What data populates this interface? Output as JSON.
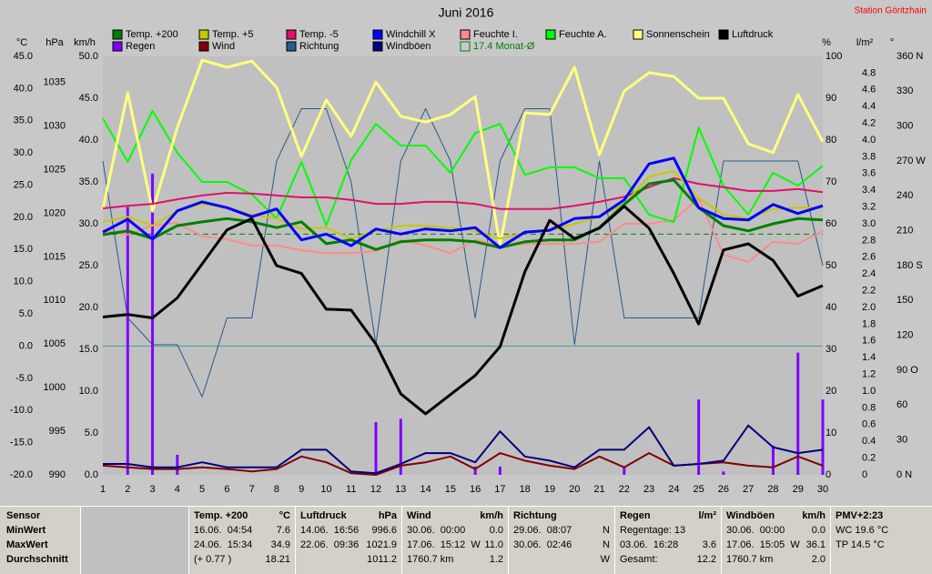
{
  "chart_data": {
    "type": "line",
    "title": "Juni 2016",
    "station": "Station Göritzhain",
    "x": [
      1,
      2,
      3,
      4,
      5,
      6,
      7,
      8,
      9,
      10,
      11,
      12,
      13,
      14,
      15,
      16,
      17,
      18,
      19,
      20,
      21,
      22,
      23,
      24,
      25,
      26,
      27,
      28,
      29,
      30
    ],
    "xlim": [
      1,
      30
    ],
    "xticks": [
      1,
      2,
      3,
      4,
      5,
      6,
      7,
      8,
      9,
      10,
      11,
      12,
      13,
      14,
      15,
      16,
      17,
      18,
      19,
      20,
      21,
      22,
      23,
      24,
      25,
      26,
      27,
      28,
      29,
      30
    ],
    "axes": [
      {
        "label": "°C",
        "lim": [
          -20,
          45
        ],
        "ticks": [
          {
            "value": -20,
            "label": "-20.0"
          },
          {
            "value": -15,
            "label": "-15.0"
          },
          {
            "value": -10,
            "label": "-10.0"
          },
          {
            "value": -5,
            "label": "-5.0"
          },
          {
            "value": 0,
            "label": "0.0"
          },
          {
            "value": 5,
            "label": "5.0"
          },
          {
            "value": 10,
            "label": "10.0"
          },
          {
            "value": 15,
            "label": "15.0"
          },
          {
            "value": 20,
            "label": "20.0"
          },
          {
            "value": 25,
            "label": "25.0"
          },
          {
            "value": 30,
            "label": "30.0"
          },
          {
            "value": 35,
            "label": "35.0"
          },
          {
            "value": 40,
            "label": "40.0"
          },
          {
            "value": 45,
            "label": "45.0"
          }
        ]
      },
      {
        "label": "hPa",
        "lim": [
          990,
          1038
        ],
        "ticks": [
          990,
          995,
          1000,
          1005,
          1010,
          1015,
          1020,
          1025,
          1030,
          1035
        ]
      },
      {
        "label": "km/h",
        "lim": [
          0,
          50
        ],
        "ticks": [
          {
            "value": 0,
            "label": "0.0"
          },
          {
            "value": 5,
            "label": "5.0"
          },
          {
            "value": 10,
            "label": "10.0"
          },
          {
            "value": 15,
            "label": "15.0"
          },
          {
            "value": 20,
            "label": "20.0"
          },
          {
            "value": 25,
            "label": "25.0"
          },
          {
            "value": 30,
            "label": "30.0"
          },
          {
            "value": 35,
            "label": "35.0"
          },
          {
            "value": 40,
            "label": "40.0"
          },
          {
            "value": 45,
            "label": "45.0"
          },
          {
            "value": 50,
            "label": "50.0"
          }
        ]
      },
      {
        "label": "%",
        "lim": [
          0,
          100
        ],
        "ticks": [
          0,
          10,
          20,
          30,
          40,
          50,
          60,
          70,
          80,
          90,
          100
        ]
      },
      {
        "label": "l/m²",
        "lim": [
          0,
          5
        ],
        "ticks": [
          0,
          0.2,
          0.4,
          0.6,
          0.8,
          {
            "value": 1,
            "label": "1.0"
          },
          1.2,
          1.4,
          1.6,
          1.8,
          {
            "value": 2,
            "label": "2.0"
          },
          2.2,
          2.4,
          2.6,
          2.8,
          {
            "value": 3,
            "label": "3.0"
          },
          3.2,
          3.4,
          3.6,
          3.8,
          {
            "value": 4,
            "label": "4.0"
          },
          4.2,
          4.4,
          4.6,
          4.8
        ]
      },
      {
        "label": "°",
        "lim": [
          0,
          360
        ],
        "ticks": [
          {
            "value": 0,
            "label": "0 N"
          },
          30,
          60,
          {
            "value": 90,
            "label": "90 O"
          },
          120,
          150,
          {
            "value": 180,
            "label": "180 S"
          },
          210,
          240,
          {
            "value": 270,
            "label": "270 W"
          },
          300,
          330,
          {
            "value": 360,
            "label": "360 N"
          }
        ]
      }
    ],
    "series": [
      {
        "name": "Temp. +200",
        "type": "line",
        "axis": 0,
        "color": "#008000",
        "values": [
          17.3,
          17.9,
          16.7,
          18.7,
          19.3,
          19.8,
          19.3,
          18.4,
          19.3,
          15.9,
          16.5,
          15.0,
          16.2,
          16.5,
          16.5,
          16.2,
          15.3,
          16.2,
          16.5,
          16.5,
          18.4,
          22.0,
          25.2,
          25.8,
          21.5,
          18.7,
          17.9,
          19.0,
          19.8,
          19.6
        ]
      },
      {
        "name": "Temp. +5",
        "type": "line",
        "axis": 0,
        "color": "#c8c800",
        "values": [
          19.3,
          20.1,
          18.7,
          21.0,
          22.1,
          21.5,
          20.4,
          19.8,
          18.2,
          18.4,
          16.7,
          17.9,
          18.7,
          18.7,
          18.4,
          17.9,
          16.7,
          17.6,
          17.9,
          19.0,
          20.1,
          22.1,
          26.3,
          27.2,
          23.0,
          20.4,
          19.8,
          21.3,
          21.5,
          21.5
        ]
      },
      {
        "name": "Temp. -5",
        "type": "line",
        "axis": 0,
        "color": "#e0106a",
        "values": [
          21.4,
          21.8,
          22.1,
          22.8,
          23.4,
          23.8,
          23.7,
          23.4,
          23.1,
          23.1,
          22.7,
          22.1,
          22.1,
          22.4,
          22.4,
          22.1,
          21.3,
          21.3,
          21.3,
          21.8,
          22.4,
          23.2,
          24.7,
          26.1,
          25.2,
          24.7,
          24.1,
          24.1,
          24.4,
          23.9
        ]
      },
      {
        "name": "Windchill X",
        "type": "line",
        "axis": 0,
        "color": "#0000ff",
        "values": [
          17.7,
          19.7,
          16.6,
          21.0,
          22.4,
          21.5,
          20.1,
          21.3,
          16.5,
          17.4,
          15.6,
          18.2,
          17.4,
          18.2,
          17.9,
          18.4,
          15.3,
          17.7,
          18.0,
          19.8,
          20.1,
          22.7,
          28.3,
          29.2,
          21.5,
          19.8,
          19.6,
          22.0,
          20.6,
          21.8
        ]
      },
      {
        "name": "Feuchte I.",
        "type": "line",
        "axis": 3,
        "color": "#ff8a8a",
        "values": [
          58.5,
          57.4,
          59.6,
          60.2,
          57.0,
          56.3,
          54.8,
          54.8,
          53.7,
          53.0,
          53.0,
          53.5,
          56.1,
          54.8,
          53.0,
          56.1,
          54.8,
          55.2,
          55.2,
          55.2,
          55.7,
          60.0,
          60.0,
          60.9,
          66.1,
          52.6,
          50.9,
          55.7,
          55.2,
          58.3
        ]
      },
      {
        "name": "Feuchte A.",
        "type": "line",
        "axis": 3,
        "color": "#00ff00",
        "values": [
          85.2,
          74.8,
          87.0,
          77.0,
          70.0,
          70.0,
          67.0,
          61.3,
          74.8,
          59.6,
          75.2,
          83.9,
          78.7,
          78.7,
          72.2,
          81.7,
          83.9,
          71.7,
          73.5,
          73.5,
          70.9,
          70.9,
          62.2,
          60.4,
          83.0,
          69.1,
          62.2,
          72.2,
          69.1,
          73.9
        ]
      },
      {
        "name": "Sonnenschein",
        "type": "line",
        "axis": 3,
        "color": "#ffff80",
        "values": [
          63.5,
          91.3,
          63.0,
          83.0,
          99.1,
          97.4,
          98.9,
          92.6,
          76.1,
          89.6,
          80.9,
          93.9,
          85.7,
          84.3,
          86.1,
          90.4,
          54.8,
          86.5,
          86.1,
          97.4,
          76.5,
          91.7,
          96.1,
          95.2,
          90.0,
          90.0,
          79.1,
          77.0,
          90.9,
          79.6
        ]
      },
      {
        "name": "Luftdruck",
        "type": "line",
        "axis": 1,
        "color": "#000000",
        "values": [
          1008.1,
          1008.4,
          1008.0,
          1010.3,
          1014.2,
          1018.1,
          1019.4,
          1014.0,
          1013.1,
          1009.0,
          1008.9,
          1005.0,
          999.3,
          997.0,
          999.2,
          1001.4,
          1004.7,
          1013.3,
          1019.2,
          1017.1,
          1018.3,
          1020.8,
          1018.3,
          1013.1,
          1007.3,
          1015.8,
          1016.5,
          1014.6,
          1010.5,
          1011.7
        ]
      },
      {
        "name": "Regen",
        "type": "bar",
        "axis": 4,
        "color": "#8000ff",
        "values": [
          0,
          3.2,
          3.6,
          0.24,
          0,
          0,
          0,
          0,
          0,
          0,
          0,
          0.63,
          0.67,
          0,
          0,
          0.1,
          0.1,
          0,
          0,
          0,
          0,
          0.1,
          0,
          0,
          0.9,
          0.04,
          0,
          0.35,
          1.46,
          0.9
        ]
      },
      {
        "name": "Wind",
        "type": "line",
        "axis": 2,
        "color": "#800000",
        "values": [
          1.1,
          0.9,
          0.7,
          0.7,
          0.9,
          0.7,
          0.4,
          0.7,
          2.2,
          1.5,
          0.2,
          0,
          1.1,
          1.5,
          2.2,
          0.7,
          2.6,
          1.7,
          1.1,
          0.7,
          2.2,
          0.9,
          2.6,
          1.1,
          1.3,
          1.5,
          1.1,
          0.9,
          2.2,
          1.1
        ]
      },
      {
        "name": "Richtung",
        "type": "line",
        "axis": 5,
        "color": "#2a5a8c",
        "values": [
          270,
          135,
          112,
          112,
          67,
          135,
          135,
          270,
          315,
          315,
          252,
          112,
          270,
          315,
          270,
          135,
          270,
          315,
          315,
          112,
          270,
          135,
          135,
          135,
          135,
          270,
          270,
          270,
          270,
          180
        ]
      },
      {
        "name": "Windböen",
        "type": "line",
        "axis": 2,
        "color": "#000080",
        "values": [
          1.3,
          1.3,
          0.9,
          0.9,
          1.5,
          0.9,
          0.9,
          0.9,
          3.0,
          3.0,
          0.4,
          0.2,
          1.3,
          2.6,
          2.6,
          1.5,
          5.2,
          2.2,
          1.7,
          0.9,
          3.0,
          3.0,
          5.7,
          1.1,
          1.3,
          1.7,
          5.9,
          3.3,
          2.6,
          3.0
        ]
      }
    ],
    "monthly_mean": {
      "value": 17.4,
      "label": "17.4 Monat-Ø",
      "axis": 0,
      "color": "#008000"
    }
  },
  "stats": {
    "row_labels": [
      "Sensor",
      "MinWert",
      "MaxWert",
      "Durchschnitt"
    ],
    "blocks": [
      {
        "title": "Temp. +200",
        "unit": "°C",
        "rows": [
          {
            "left": "16.06.  04:54",
            "right": "7.6"
          },
          {
            "left": "24.06.  15:34",
            "right": "34.9"
          },
          {
            "left": "(+ 0.77 )",
            "right": "18.21"
          }
        ]
      },
      {
        "title": "Luftdruck",
        "unit": "hPa",
        "rows": [
          {
            "left": "14.06.  16:56",
            "right": "996.6"
          },
          {
            "left": "22.06.  09:36",
            "right": "1021.9"
          },
          {
            "right": "1011.2"
          }
        ]
      },
      {
        "title": "Wind",
        "unit": "km/h",
        "rows": [
          {
            "left": "30.06.  00:00",
            "right": "0.0"
          },
          {
            "left": "17.06.  15:12  W",
            "right": "11.0"
          },
          {
            "left": "1760.7 km",
            "right": "1.2"
          }
        ]
      },
      {
        "title": "Richtung",
        "rows": [
          {
            "left": "29.06.  08:07",
            "right": "N"
          },
          {
            "left": "30.06.  02:46",
            "right": "N"
          },
          {
            "right": "W"
          }
        ]
      },
      {
        "title": "Regen",
        "unit": "l/m²",
        "rows": [
          {
            "left": "Regentage: 13"
          },
          {
            "left": "03.06.  16:28",
            "right": "3.6"
          },
          {
            "left": "Gesamt:",
            "right": "12.2"
          }
        ]
      },
      {
        "title": "Windböen",
        "unit": "km/h",
        "rows": [
          {
            "left": "30.06.  00:00",
            "right": "0.0"
          },
          {
            "left": "17.06.  15:05  W",
            "right": "36.1"
          },
          {
            "left": "1760.7 km",
            "right": "2.0"
          }
        ]
      },
      {
        "title": "PMV+2:23",
        "rows": [
          {
            "left": "WC 19.6 °C"
          },
          {
            "left": "TP 14.5 °C"
          }
        ]
      }
    ]
  }
}
